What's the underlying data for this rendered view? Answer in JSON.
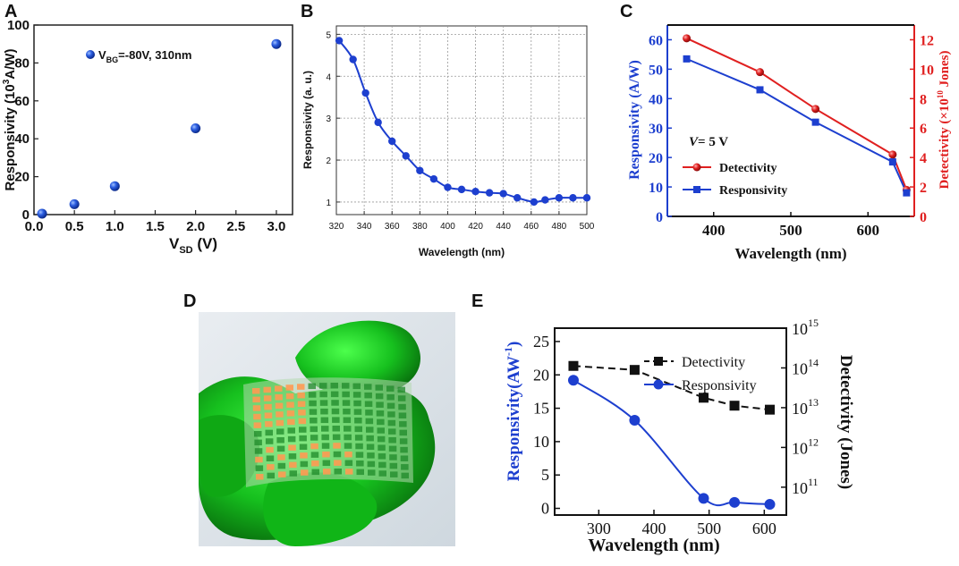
{
  "figure": {
    "panel_labels": [
      "A",
      "B",
      "C",
      "D",
      "E"
    ]
  },
  "colors": {
    "blue": "#1d3fcf",
    "red": "#e02020",
    "black": "#111111",
    "dot_blue": "#2b5de0"
  },
  "photo": {
    "description_icon": "flexible-photodetector-array-photo"
  },
  "chart_data": [
    {
      "panel": "A",
      "type": "scatter",
      "xlabel_main": "V",
      "xlabel_sub": "SD",
      "xlabel_unit": " (V)",
      "ylabel_pre": "Responsivity (10",
      "ylabel_sup": "3",
      "ylabel_post": "A/W)",
      "xlim": [
        0,
        3.2
      ],
      "ylim": [
        0,
        100
      ],
      "xticks": [
        "0.0",
        "0.5",
        "1.0",
        "1.5",
        "2.0",
        "2.5",
        "3.0"
      ],
      "xtick_values": [
        0,
        0.5,
        1.0,
        1.5,
        2.0,
        2.5,
        3.0
      ],
      "yticks": [
        "0",
        "20",
        "40",
        "60",
        "80",
        "100"
      ],
      "ytick_values": [
        0,
        20,
        40,
        60,
        80,
        100
      ],
      "x": [
        0.1,
        0.5,
        1.0,
        2.0,
        3.0
      ],
      "y": [
        0.5,
        5.5,
        15,
        45.5,
        90
      ],
      "legend_pre": "V",
      "legend_sub": "BG",
      "legend_post": "=-80V, 310nm"
    },
    {
      "panel": "B",
      "type": "line",
      "xlabel": "Wavelength (nm)",
      "ylabel": "Responsivity (a. u.)",
      "xlim": [
        320,
        500
      ],
      "ylim": [
        0.7,
        5.2
      ],
      "xticks": [
        "320",
        "340",
        "360",
        "380",
        "400",
        "420",
        "440",
        "460",
        "480",
        "500"
      ],
      "xtick_values": [
        320,
        340,
        360,
        380,
        400,
        420,
        440,
        460,
        480,
        500
      ],
      "yticks": [
        "1",
        "2",
        "3",
        "4",
        "5"
      ],
      "ytick_values": [
        1,
        2,
        3,
        4,
        5
      ],
      "grid": true,
      "x": [
        322,
        332,
        341,
        350,
        360,
        370,
        380,
        390,
        400,
        410,
        420,
        430,
        440,
        450,
        462,
        470,
        480,
        490,
        500
      ],
      "y": [
        4.85,
        4.4,
        3.6,
        2.9,
        2.45,
        2.1,
        1.75,
        1.55,
        1.35,
        1.3,
        1.25,
        1.22,
        1.2,
        1.1,
        1.0,
        1.05,
        1.1,
        1.1,
        1.1
      ]
    },
    {
      "panel": "C",
      "type": "line",
      "xlabel": "Wavelength (nm)",
      "ylabel_left": "Responsivity (A/W)",
      "ylabel_right_pre": "Detectivity (×10",
      "ylabel_right_sup": "10",
      "ylabel_right_post": " Jones)",
      "xlim": [
        340,
        660
      ],
      "ylim_left": [
        0,
        65
      ],
      "ylim_right": [
        0,
        13
      ],
      "xticks": [
        "400",
        "500",
        "600"
      ],
      "xtick_values": [
        400,
        500,
        600
      ],
      "yticks_left": [
        "0",
        "10",
        "20",
        "30",
        "40",
        "50",
        "60"
      ],
      "ytick_values_left": [
        0,
        10,
        20,
        30,
        40,
        50,
        60
      ],
      "yticks_right": [
        "0",
        "2",
        "4",
        "6",
        "8",
        "10",
        "12"
      ],
      "ytick_values_right": [
        0,
        2,
        4,
        6,
        8,
        10,
        12
      ],
      "annotation": "V= 5 V",
      "annotation_italic": "V",
      "annotation_rest": "= 5 V",
      "series": [
        {
          "name": "Detectivity",
          "axis": "right",
          "x": [
            365,
            460,
            532,
            632,
            650
          ],
          "values": [
            12.1,
            9.8,
            7.3,
            4.2,
            1.8
          ]
        },
        {
          "name": "Responsivity",
          "axis": "left",
          "x": [
            365,
            460,
            532,
            632,
            650
          ],
          "values": [
            53.5,
            43,
            32,
            18.5,
            8
          ]
        }
      ]
    },
    {
      "panel": "E",
      "type": "line",
      "xlabel": "Wavelength (nm)",
      "ylabel_left_pre": "Responsivity(AW",
      "ylabel_left_sup": "-1",
      "ylabel_left_post": ")",
      "ylabel_right": "Detectivity (Jones)",
      "xlim": [
        220,
        640
      ],
      "ylim_left": [
        -1,
        27
      ],
      "ylim_right_log": [
        10.3,
        15.0
      ],
      "xticks": [
        "300",
        "400",
        "500",
        "600"
      ],
      "xtick_values": [
        300,
        400,
        500,
        600
      ],
      "yticks_left": [
        "0",
        "5",
        "10",
        "15",
        "20",
        "25"
      ],
      "ytick_values_left": [
        0,
        5,
        10,
        15,
        20,
        25
      ],
      "yticks_right_base": "10",
      "yticks_right_exp": [
        "11",
        "12",
        "13",
        "14",
        "15"
      ],
      "ytick_values_right_log": [
        11,
        12,
        13,
        14,
        15
      ],
      "series": [
        {
          "name": "Detectivity",
          "axis": "right",
          "scale": "log10",
          "x": [
            254,
            365,
            490,
            546,
            610
          ],
          "values_log10": [
            14.05,
            13.95,
            13.25,
            13.05,
            12.95
          ]
        },
        {
          "name": "Responsivity",
          "axis": "left",
          "x": [
            254,
            365,
            490,
            546,
            610
          ],
          "values": [
            19.2,
            13.2,
            1.5,
            0.9,
            0.6
          ]
        }
      ]
    }
  ]
}
